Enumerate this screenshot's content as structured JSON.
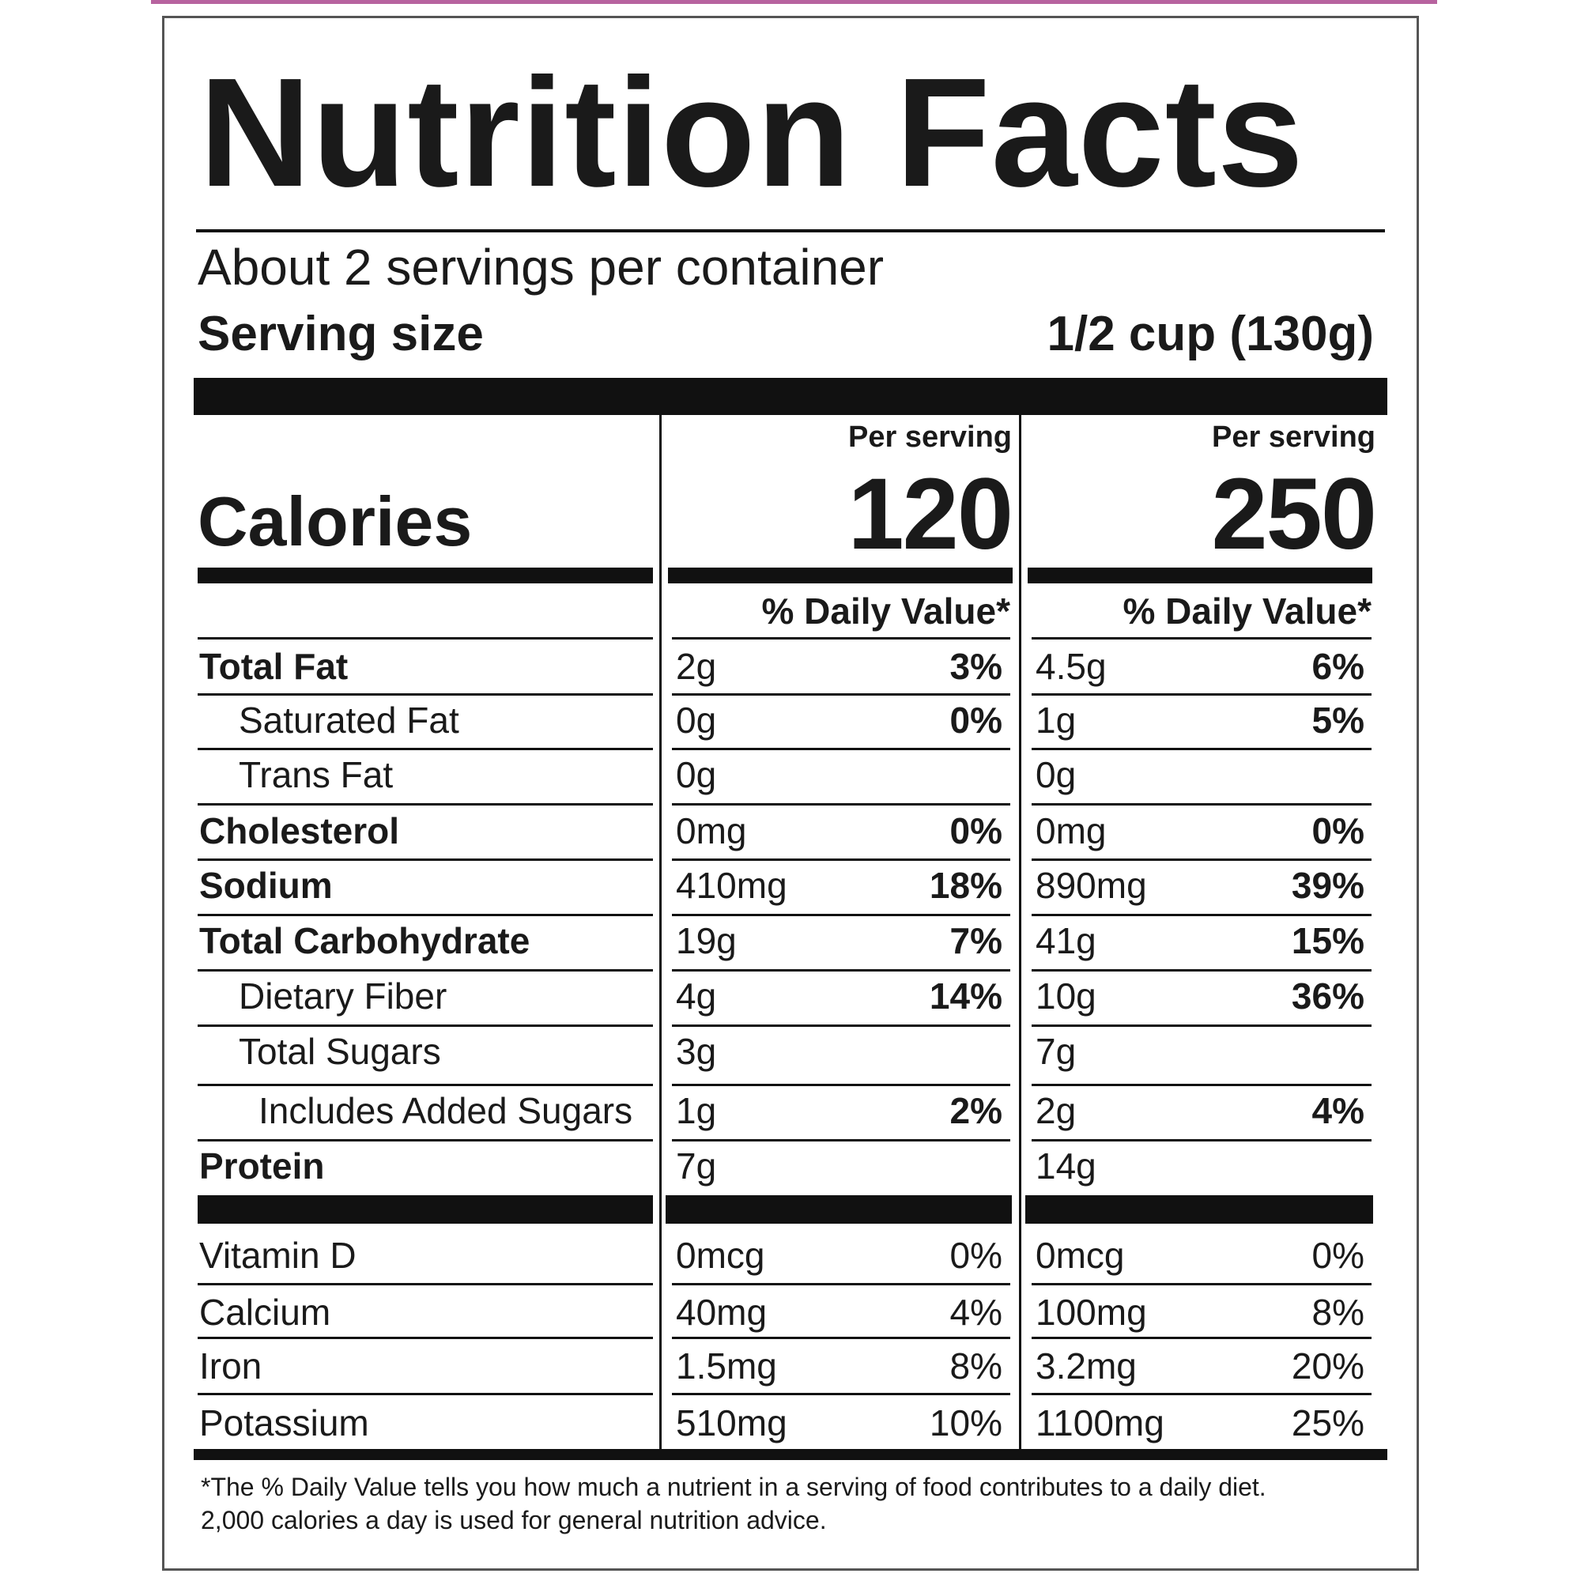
{
  "title": "Nutrition Facts",
  "servings_per_container": "About 2 servings per container",
  "serving_size": {
    "label": "Serving size",
    "value": "1/2 cup (130g)"
  },
  "columns": [
    {
      "per_serving_label": "Per serving",
      "calories": "120",
      "dv_header": "% Daily Value*"
    },
    {
      "per_serving_label": "Per serving",
      "calories": "250",
      "dv_header": "% Daily Value*"
    }
  ],
  "calories_label": "Calories",
  "nutrients": [
    {
      "name": "Total Fat",
      "bold": true,
      "indent": 0,
      "c1_amount": "2g",
      "c1_pct": "3%",
      "c2_amount": "4.5g",
      "c2_pct": "6%"
    },
    {
      "name": "Saturated Fat",
      "bold": false,
      "indent": 1,
      "c1_amount": "0g",
      "c1_pct": "0%",
      "c2_amount": "1g",
      "c2_pct": "5%"
    },
    {
      "name": "Trans Fat",
      "bold": false,
      "indent": 1,
      "c1_amount": "0g",
      "c1_pct": "",
      "c2_amount": "0g",
      "c2_pct": ""
    },
    {
      "name": "Cholesterol",
      "bold": true,
      "indent": 0,
      "c1_amount": "0mg",
      "c1_pct": "0%",
      "c2_amount": "0mg",
      "c2_pct": "0%"
    },
    {
      "name": "Sodium",
      "bold": true,
      "indent": 0,
      "c1_amount": "410mg",
      "c1_pct": "18%",
      "c2_amount": "890mg",
      "c2_pct": "39%"
    },
    {
      "name": "Total Carbohydrate",
      "bold": true,
      "indent": 0,
      "c1_amount": "19g",
      "c1_pct": "7%",
      "c2_amount": "41g",
      "c2_pct": "15%"
    },
    {
      "name": "Dietary Fiber",
      "bold": false,
      "indent": 1,
      "c1_amount": "4g",
      "c1_pct": "14%",
      "c2_amount": "10g",
      "c2_pct": "36%"
    },
    {
      "name": "Total Sugars",
      "bold": false,
      "indent": 1,
      "c1_amount": "3g",
      "c1_pct": "",
      "c2_amount": "7g",
      "c2_pct": ""
    },
    {
      "name": "Includes Added Sugars",
      "bold": false,
      "indent": 2,
      "c1_amount": "1g",
      "c1_pct": "2%",
      "c2_amount": "2g",
      "c2_pct": "4%"
    },
    {
      "name": "Protein",
      "bold": true,
      "indent": 0,
      "c1_amount": "7g",
      "c1_pct": "",
      "c2_amount": "14g",
      "c2_pct": ""
    }
  ],
  "vitamins": [
    {
      "name": "Vitamin D",
      "c1_amount": "0mcg",
      "c1_pct": "0%",
      "c2_amount": "0mcg",
      "c2_pct": "0%"
    },
    {
      "name": "Calcium",
      "c1_amount": "40mg",
      "c1_pct": "4%",
      "c2_amount": "100mg",
      "c2_pct": "8%"
    },
    {
      "name": "Iron",
      "c1_amount": "1.5mg",
      "c1_pct": "8%",
      "c2_amount": "3.2mg",
      "c2_pct": "20%"
    },
    {
      "name": "Potassium",
      "c1_amount": "510mg",
      "c1_pct": "10%",
      "c2_amount": "1100mg",
      "c2_pct": "25%"
    }
  ],
  "footnote": [
    "*The % Daily Value tells you how much a nutrient in a serving of food contributes to a daily diet.",
    "2,000 calories a day is used for general nutrition advice."
  ]
}
